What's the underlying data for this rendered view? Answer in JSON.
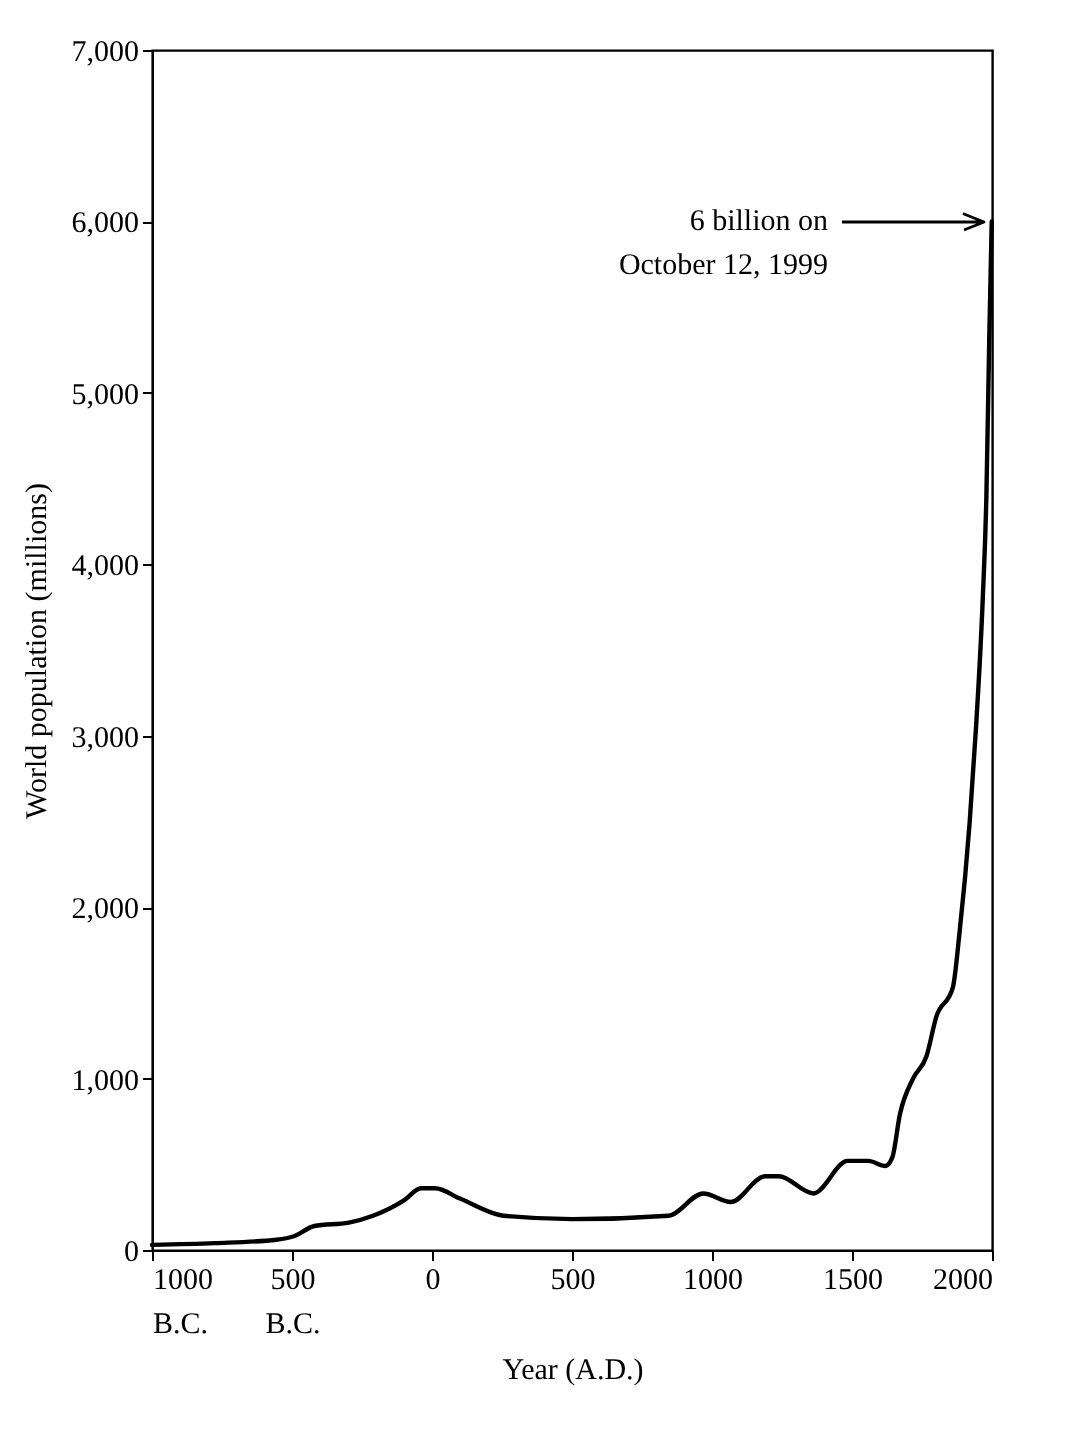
{
  "chart_data": {
    "type": "line",
    "xlabel": "Year (A.D.)",
    "ylabel": "World population (millions)",
    "x": [
      -1000,
      -776,
      -555,
      -493,
      -420,
      -297,
      -211,
      -100,
      -39,
      11,
      100,
      255,
      501,
      845,
      969,
      1067,
      1189,
      1239,
      1362,
      1484,
      1558,
      1619,
      1644,
      1671,
      1718,
      1766,
      1801,
      1860,
      1884,
      1920,
      1943,
      1967,
      1980,
      1990,
      1999
    ],
    "series": [
      {
        "color": "#000000",
        "values": [
          30,
          40,
          60,
          80,
          140,
          160,
          200,
          290,
          360,
          360,
          300,
          200,
          180,
          200,
          330,
          280,
          430,
          430,
          330,
          520,
          520,
          490,
          540,
          790,
          1000,
          1130,
          1360,
          1530,
          1850,
          2490,
          3050,
          3800,
          4400,
          5300,
          6000
        ]
      }
    ],
    "xlim": [
      -1000,
      2000
    ],
    "ylim": [
      0,
      7000
    ],
    "xticks": [
      {
        "value": -1000,
        "label": "1000\nB.C."
      },
      {
        "value": -500,
        "label": "500\nB.C."
      },
      0,
      500,
      1000,
      1500,
      2000
    ],
    "yticks": [
      0,
      {
        "value": 1000,
        "label": "1,000"
      },
      {
        "value": 2000,
        "label": "2,000"
      },
      {
        "value": 3000,
        "label": "3,000"
      },
      {
        "value": 4000,
        "label": "4,000"
      },
      {
        "value": 5000,
        "label": "5,000"
      },
      {
        "value": 6000,
        "label": "6,000"
      },
      {
        "value": 7000,
        "label": "7,000"
      }
    ],
    "annotations": [
      "6 billion on\nOctober 12, 1999"
    ],
    "grid": false,
    "legend": false,
    "marker": "none",
    "line_style": "solid"
  }
}
